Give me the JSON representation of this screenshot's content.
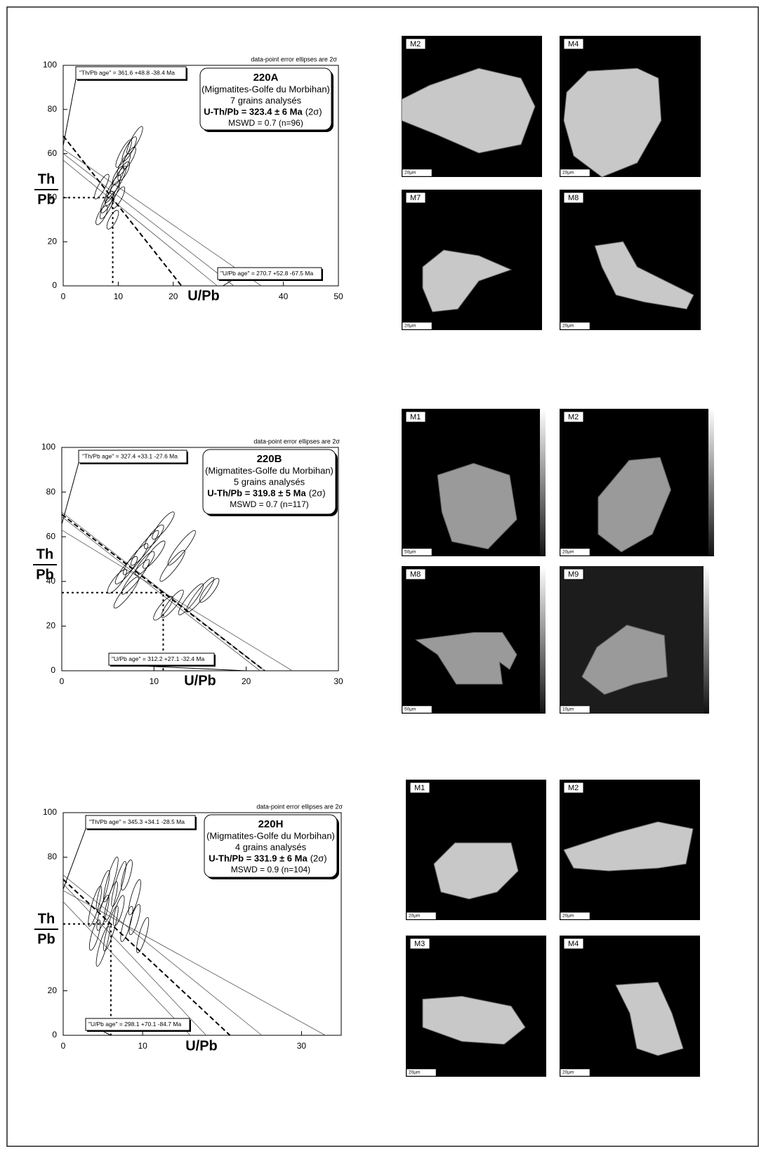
{
  "chart_data": [
    {
      "type": "scatter",
      "note": "data-point error ellipses are 2σ",
      "th_pb_age": "\"Th/Pb age\" =  361.6 +48.8 -38.4 Ma",
      "u_pb_age": "\"U/Pb age\" = 270.7 +52.8 -67.5 Ma",
      "sample": "220A",
      "location": "(Migmatites-Golfe du Morbihan)",
      "grains": "7 grains analysés",
      "age": "U-Th/Pb = 323.4 ± 6 Ma",
      "age_sigma": "(2σ)",
      "mswd": "MSWD = 0.7 (n=96)",
      "x_label": "U/Pb",
      "y_label_top": "Th",
      "y_label_bottom": "Pb",
      "xlim": [
        0,
        50
      ],
      "ylim": [
        0,
        100
      ],
      "xticks": [
        0,
        10,
        20,
        40,
        50
      ],
      "yticks": [
        0,
        20,
        40,
        60,
        80,
        100
      ],
      "x": [
        7,
        8,
        9,
        10,
        11,
        12,
        8,
        9,
        10,
        11,
        12,
        13,
        9,
        10,
        7,
        11
      ],
      "values": [
        32,
        38,
        42,
        48,
        52,
        58,
        36,
        44,
        50,
        55,
        62,
        66,
        30,
        40,
        45,
        60
      ],
      "fit_line": {
        "th_pb_intercept": 68,
        "u_pb_intercept": 21.5
      },
      "envelope_lines": [
        {
          "th_pb_intercept": 62,
          "u_pb_intercept": 36
        },
        {
          "th_pb_intercept": 57,
          "u_pb_intercept": 28
        },
        {
          "th_pb_intercept": 60,
          "u_pb_intercept": 31
        }
      ],
      "mean": {
        "x": 9,
        "y": 40
      }
    },
    {
      "type": "scatter",
      "note": "data-point error ellipses are 2σ",
      "th_pb_age": "\"Th/Pb age\" =  327.4 +33.1 -27.6 Ma",
      "u_pb_age": "\"U/Pb age\" = 312.2 +27.1 -32.4 Ma",
      "sample": "220B",
      "location": "(Migmatites-Golfe du Morbihan)",
      "grains": "5 grains analysés",
      "age": "U-Th/Pb = 319.8 ± 5 Ma",
      "age_sigma": "(2σ)",
      "mswd": "MSWD = 0.7 (n=117)",
      "x_label": "U/Pb",
      "y_label_top": "Th",
      "y_label_bottom": "Pb",
      "xlim": [
        0,
        30
      ],
      "ylim": [
        0,
        100
      ],
      "xticks": [
        0,
        10,
        20,
        30
      ],
      "yticks": [
        0,
        20,
        40,
        60,
        80,
        100
      ],
      "x": [
        6,
        7,
        8,
        9,
        10,
        11,
        7,
        8,
        9,
        10,
        12,
        13,
        11,
        12,
        14,
        15,
        16
      ],
      "values": [
        40,
        45,
        50,
        55,
        60,
        65,
        35,
        42,
        48,
        52,
        47,
        55,
        28,
        30,
        32,
        34,
        36
      ],
      "fit_line": {
        "th_pb_intercept": 70,
        "u_pb_intercept": 22
      },
      "envelope_lines": [
        {
          "th_pb_intercept": 63,
          "u_pb_intercept": 25
        },
        {
          "th_pb_intercept": 71,
          "u_pb_intercept": 22
        },
        {
          "th_pb_intercept": 69,
          "u_pb_intercept": 21.5
        }
      ],
      "mean": {
        "x": 11,
        "y": 35
      }
    },
    {
      "type": "scatter",
      "note": "data-point error ellipses are 2σ",
      "th_pb_age": "\"Th/Pb age\" =  345.3 +34.1 -28.5 Ma",
      "u_pb_age": "\"U/Pb age\" = 298.1 +70.1 -84.7 Ma",
      "sample": "220H",
      "location": "(Migmatites-Golfe du Morbihan)",
      "grains": "4 grains analysés",
      "age": "U-Th/Pb = 331.9 ± 6 Ma",
      "age_sigma": "(2σ)",
      "mswd": "MSWD = 0.9 (n=104)",
      "x_label": "U/Pb",
      "y_label_top": "Th",
      "y_label_bottom": "Pb",
      "xlim": [
        0,
        35
      ],
      "ylim": [
        0,
        100
      ],
      "xticks": [
        0,
        10,
        30
      ],
      "yticks": [
        0,
        20,
        80,
        100
      ],
      "x": [
        4,
        5,
        6,
        7,
        8,
        9,
        5,
        6,
        7,
        8,
        4,
        6,
        9,
        10,
        5
      ],
      "values": [
        45,
        55,
        60,
        68,
        72,
        62,
        40,
        48,
        56,
        50,
        58,
        70,
        52,
        45,
        65
      ],
      "fit_line": {
        "th_pb_intercept": 70,
        "u_pb_intercept": 21
      },
      "envelope_lines": [
        {
          "th_pb_intercept": 72,
          "u_pb_intercept": 25
        },
        {
          "th_pb_intercept": 65,
          "u_pb_intercept": 33
        },
        {
          "th_pb_intercept": 60,
          "u_pb_intercept": 16
        },
        {
          "th_pb_intercept": 68,
          "u_pb_intercept": 18
        }
      ],
      "mean": {
        "x": 6,
        "y": 50
      }
    }
  ],
  "micrographs": [
    [
      {
        "label": "M2",
        "scale": "20µm"
      },
      {
        "label": "M4",
        "scale": "20µm"
      },
      {
        "label": "M7",
        "scale": "20µm"
      },
      {
        "label": "M8",
        "scale": "20µm"
      }
    ],
    [
      {
        "label": "M1",
        "scale": "50µm"
      },
      {
        "label": "M2",
        "scale": "20µm"
      },
      {
        "label": "M8",
        "scale": "50µm"
      },
      {
        "label": "M9",
        "scale": "10µm"
      }
    ],
    [
      {
        "label": "M1",
        "scale": "20µm"
      },
      {
        "label": "M2",
        "scale": "20µm"
      },
      {
        "label": "M3",
        "scale": "20µm"
      },
      {
        "label": "M4",
        "scale": "20µm"
      }
    ]
  ]
}
